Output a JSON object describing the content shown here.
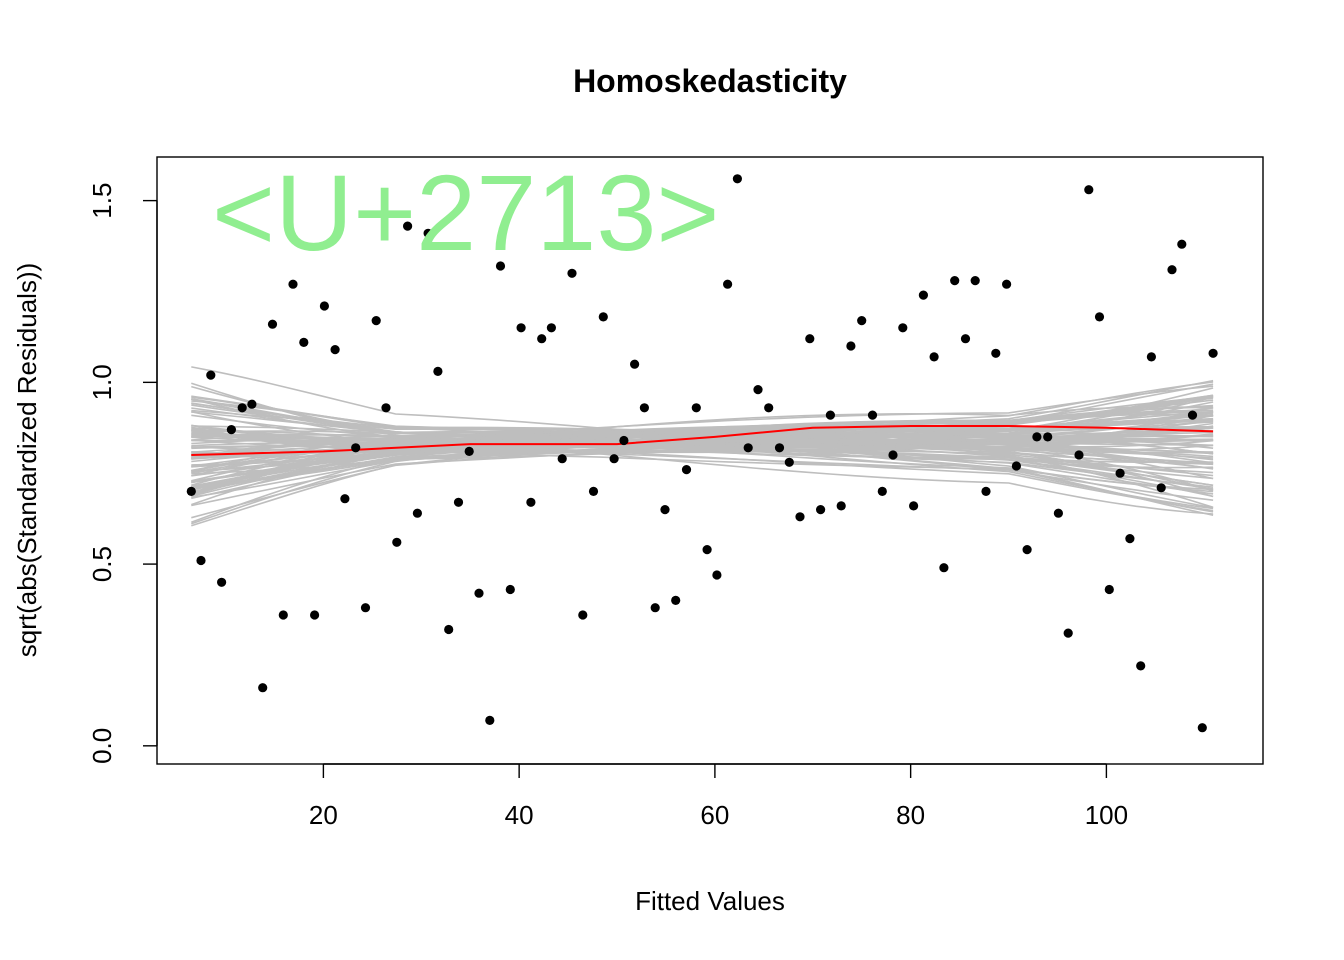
{
  "chart_data": {
    "type": "scatter",
    "title": "Homoskedasticity",
    "xlabel": "Fitted Values",
    "ylabel": "sqrt(abs(Standardized Residuals))",
    "annotation": "<U+2713>",
    "xlim": [
      3,
      116
    ],
    "ylim": [
      -0.05,
      1.62
    ],
    "x_ticks": [
      "20",
      "40",
      "60",
      "80",
      "100"
    ],
    "y_ticks": [
      "0.0",
      "0.5",
      "1.0",
      "1.5"
    ],
    "colors": {
      "points": "#000000",
      "smooth": "#ff0000",
      "simulated_band": "#bebebe",
      "annotation": "#90ee90"
    },
    "points": [
      [
        6.5,
        0.7
      ],
      [
        7.5,
        0.51
      ],
      [
        8.5,
        1.02
      ],
      [
        9.6,
        0.45
      ],
      [
        10.6,
        0.87
      ],
      [
        11.7,
        0.93
      ],
      [
        12.7,
        0.94
      ],
      [
        13.8,
        0.16
      ],
      [
        14.8,
        1.16
      ],
      [
        15.9,
        0.36
      ],
      [
        16.9,
        1.27
      ],
      [
        18.0,
        1.11
      ],
      [
        19.1,
        0.36
      ],
      [
        20.1,
        1.21
      ],
      [
        21.2,
        1.09
      ],
      [
        22.2,
        0.68
      ],
      [
        23.3,
        0.82
      ],
      [
        24.3,
        0.38
      ],
      [
        25.4,
        1.17
      ],
      [
        26.4,
        0.93
      ],
      [
        27.5,
        0.56
      ],
      [
        28.6,
        1.43
      ],
      [
        29.6,
        0.64
      ],
      [
        30.7,
        1.41
      ],
      [
        31.7,
        1.03
      ],
      [
        32.8,
        0.32
      ],
      [
        33.8,
        0.67
      ],
      [
        34.9,
        0.81
      ],
      [
        35.9,
        0.42
      ],
      [
        37.0,
        0.07
      ],
      [
        38.1,
        1.32
      ],
      [
        39.1,
        0.43
      ],
      [
        40.2,
        1.15
      ],
      [
        41.2,
        0.67
      ],
      [
        42.3,
        1.12
      ],
      [
        43.3,
        1.15
      ],
      [
        44.4,
        0.79
      ],
      [
        45.4,
        1.3
      ],
      [
        46.5,
        0.36
      ],
      [
        47.6,
        0.7
      ],
      [
        48.6,
        1.18
      ],
      [
        49.7,
        0.79
      ],
      [
        50.7,
        0.84
      ],
      [
        51.8,
        1.05
      ],
      [
        52.8,
        0.93
      ],
      [
        53.9,
        0.38
      ],
      [
        54.9,
        0.65
      ],
      [
        56.0,
        0.4
      ],
      [
        57.1,
        0.76
      ],
      [
        58.1,
        0.93
      ],
      [
        59.2,
        0.54
      ],
      [
        60.2,
        0.47
      ],
      [
        61.3,
        1.27
      ],
      [
        62.3,
        1.56
      ],
      [
        63.4,
        0.82
      ],
      [
        64.4,
        0.98
      ],
      [
        65.5,
        0.93
      ],
      [
        66.6,
        0.82
      ],
      [
        67.6,
        0.78
      ],
      [
        68.7,
        0.63
      ],
      [
        69.7,
        1.12
      ],
      [
        70.8,
        0.65
      ],
      [
        71.8,
        0.91
      ],
      [
        72.9,
        0.66
      ],
      [
        73.9,
        1.1
      ],
      [
        75.0,
        1.17
      ],
      [
        76.1,
        0.91
      ],
      [
        77.1,
        0.7
      ],
      [
        78.2,
        0.8
      ],
      [
        79.2,
        1.15
      ],
      [
        80.3,
        0.66
      ],
      [
        81.3,
        1.24
      ],
      [
        82.4,
        1.07
      ],
      [
        83.4,
        0.49
      ],
      [
        84.5,
        1.28
      ],
      [
        85.6,
        1.12
      ],
      [
        86.6,
        1.28
      ],
      [
        87.7,
        0.7
      ],
      [
        88.7,
        1.08
      ],
      [
        89.8,
        1.27
      ],
      [
        90.8,
        0.77
      ],
      [
        91.9,
        0.54
      ],
      [
        92.9,
        0.85
      ],
      [
        94.0,
        0.85
      ],
      [
        95.1,
        0.64
      ],
      [
        96.1,
        0.31
      ],
      [
        97.2,
        0.8
      ],
      [
        98.2,
        1.53
      ],
      [
        99.3,
        1.18
      ],
      [
        100.3,
        0.43
      ],
      [
        101.4,
        0.75
      ],
      [
        102.4,
        0.57
      ],
      [
        103.5,
        0.22
      ],
      [
        104.6,
        1.07
      ],
      [
        105.6,
        0.71
      ],
      [
        106.7,
        1.31
      ],
      [
        107.7,
        1.38
      ],
      [
        108.8,
        0.91
      ],
      [
        109.8,
        0.05
      ],
      [
        110.9,
        1.08
      ]
    ],
    "smooth_line": [
      [
        6.5,
        0.8
      ],
      [
        20,
        0.81
      ],
      [
        35,
        0.83
      ],
      [
        50,
        0.83
      ],
      [
        60,
        0.85
      ],
      [
        70,
        0.875
      ],
      [
        80,
        0.88
      ],
      [
        90,
        0.88
      ],
      [
        100,
        0.875
      ],
      [
        110.9,
        0.865
      ]
    ],
    "simulated_band_count": 100,
    "simulated_band_center": 0.82,
    "simulated_band_spread": [
      0.24,
      0.1,
      0.09,
      0.1,
      0.11,
      0.23
    ]
  }
}
